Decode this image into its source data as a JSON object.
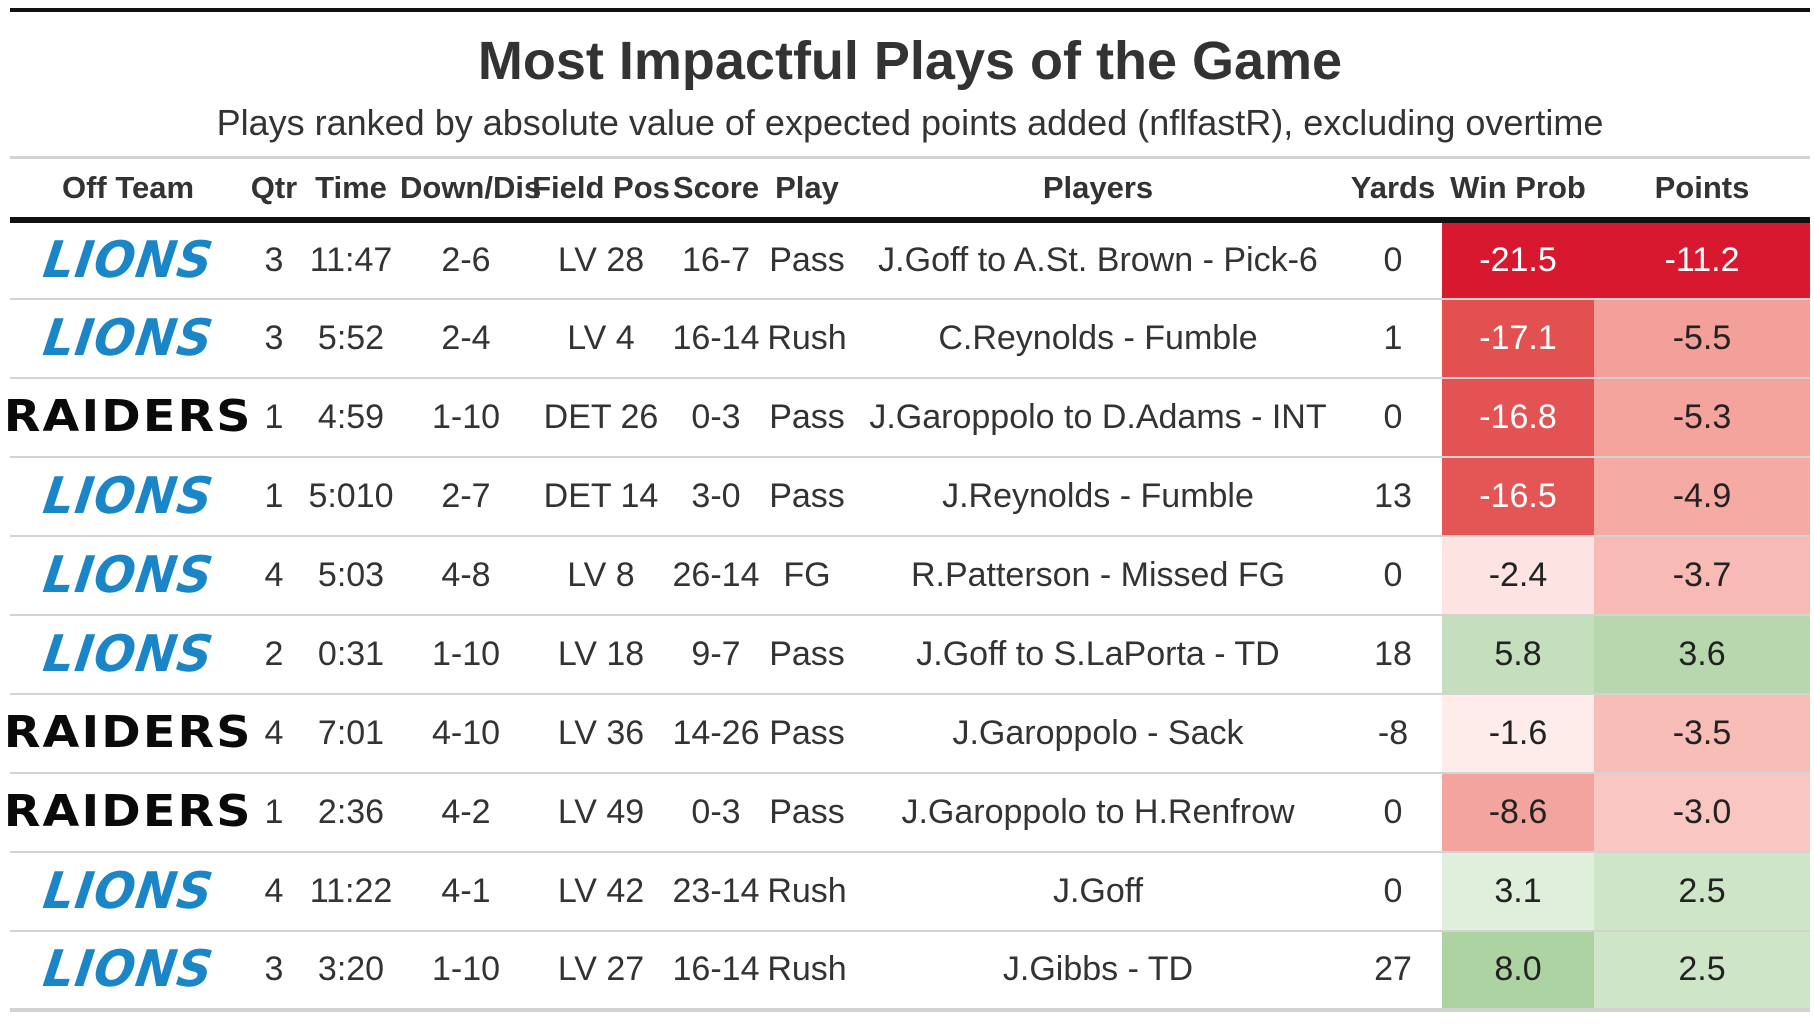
{
  "title": "Most Impactful Plays of the Game",
  "subtitle": "Plays ranked by absolute value of expected points added (nflfastR), excluding overtime",
  "headers": {
    "team": "Off Team",
    "qtr": "Qtr",
    "time": "Time",
    "down": "Down/Dis",
    "field": "Field Pos",
    "score": "Score",
    "play": "Play",
    "players": "Players",
    "yards": "Yards",
    "wp": "Win Prob",
    "pts": "Points"
  },
  "team_logos": {
    "LIONS": {
      "color": "#1a86c8"
    },
    "RAIDERS": {
      "color": "#0a0a0a"
    }
  },
  "rows": [
    {
      "team": "LIONS",
      "qtr": "3",
      "time": "11:47",
      "down": "2-6",
      "field": "LV 28",
      "score": "16-7",
      "play": "Pass",
      "players": "J.Goff to A.St. Brown - Pick-6",
      "yards": "0",
      "wp": "-21.5",
      "pts": "-11.2",
      "wp_bg": "#d7182e",
      "pts_bg": "#d7182e",
      "wp_fg": "#ffffff",
      "pts_fg": "#ffffff"
    },
    {
      "team": "LIONS",
      "qtr": "3",
      "time": "5:52",
      "down": "2-4",
      "field": "LV 4",
      "score": "16-14",
      "play": "Rush",
      "players": "C.Reynolds - Fumble",
      "yards": "1",
      "wp": "-17.1",
      "pts": "-5.5",
      "wp_bg": "#e35050",
      "pts_bg": "#f4a09a",
      "wp_fg": "#ffffff",
      "pts_fg": "#222222"
    },
    {
      "team": "RAIDERS",
      "qtr": "1",
      "time": "4:59",
      "down": "1-10",
      "field": "DET 26",
      "score": "0-3",
      "play": "Pass",
      "players": "J.Garoppolo to D.Adams - INT",
      "yards": "0",
      "wp": "-16.8",
      "pts": "-5.3",
      "wp_bg": "#e45353",
      "pts_bg": "#f5a39d",
      "wp_fg": "#ffffff",
      "pts_fg": "#222222"
    },
    {
      "team": "LIONS",
      "qtr": "1",
      "time": "5:010",
      "down": "2-7",
      "field": "DET 14",
      "score": "3-0",
      "play": "Pass",
      "players": "J.Reynolds - Fumble",
      "yards": "13",
      "wp": "-16.5",
      "pts": "-4.9",
      "wp_bg": "#e45656",
      "pts_bg": "#f6aaa4",
      "wp_fg": "#ffffff",
      "pts_fg": "#222222"
    },
    {
      "team": "LIONS",
      "qtr": "4",
      "time": "5:03",
      "down": "4-8",
      "field": "LV 8",
      "score": "26-14",
      "play": "FG",
      "players": "R.Patterson - Missed FG",
      "yards": "0",
      "wp": "-2.4",
      "pts": "-3.7",
      "wp_bg": "#fde3e1",
      "pts_bg": "#f8bab4",
      "wp_fg": "#222222",
      "pts_fg": "#222222"
    },
    {
      "team": "LIONS",
      "qtr": "2",
      "time": "0:31",
      "down": "1-10",
      "field": "LV 18",
      "score": "9-7",
      "play": "Pass",
      "players": "J.Goff to S.LaPorta - TD",
      "yards": "18",
      "wp": "5.8",
      "pts": "3.6",
      "wp_bg": "#c5dfbe",
      "pts_bg": "#b7d8ae",
      "wp_fg": "#222222",
      "pts_fg": "#222222"
    },
    {
      "team": "RAIDERS",
      "qtr": "4",
      "time": "7:01",
      "down": "4-10",
      "field": "LV 36",
      "score": "14-26",
      "play": "Pass",
      "players": "J.Garoppolo - Sack",
      "yards": "-8",
      "wp": "-1.6",
      "pts": "-3.5",
      "wp_bg": "#feeceb",
      "pts_bg": "#f8bdb7",
      "wp_fg": "#222222",
      "pts_fg": "#222222"
    },
    {
      "team": "RAIDERS",
      "qtr": "1",
      "time": "2:36",
      "down": "4-2",
      "field": "LV 49",
      "score": "0-3",
      "play": "Pass",
      "players": "J.Garoppolo to H.Renfrow",
      "yards": "0",
      "wp": "-8.6",
      "pts": "-3.0",
      "wp_bg": "#f4a49e",
      "pts_bg": "#fac6c1",
      "wp_fg": "#222222",
      "pts_fg": "#222222"
    },
    {
      "team": "LIONS",
      "qtr": "4",
      "time": "11:22",
      "down": "4-1",
      "field": "LV 42",
      "score": "23-14",
      "play": "Rush",
      "players": "J.Goff",
      "yards": "0",
      "wp": "3.1",
      "pts": "2.5",
      "wp_bg": "#e0eedc",
      "pts_bg": "#cfe5c8",
      "wp_fg": "#222222",
      "pts_fg": "#222222"
    },
    {
      "team": "LIONS",
      "qtr": "3",
      "time": "3:20",
      "down": "1-10",
      "field": "LV 27",
      "score": "16-14",
      "play": "Rush",
      "players": "J.Gibbs - TD",
      "yards": "27",
      "wp": "8.0",
      "pts": "2.5",
      "wp_bg": "#acd3a1",
      "pts_bg": "#cfe5c8",
      "wp_fg": "#222222",
      "pts_fg": "#222222"
    }
  ]
}
